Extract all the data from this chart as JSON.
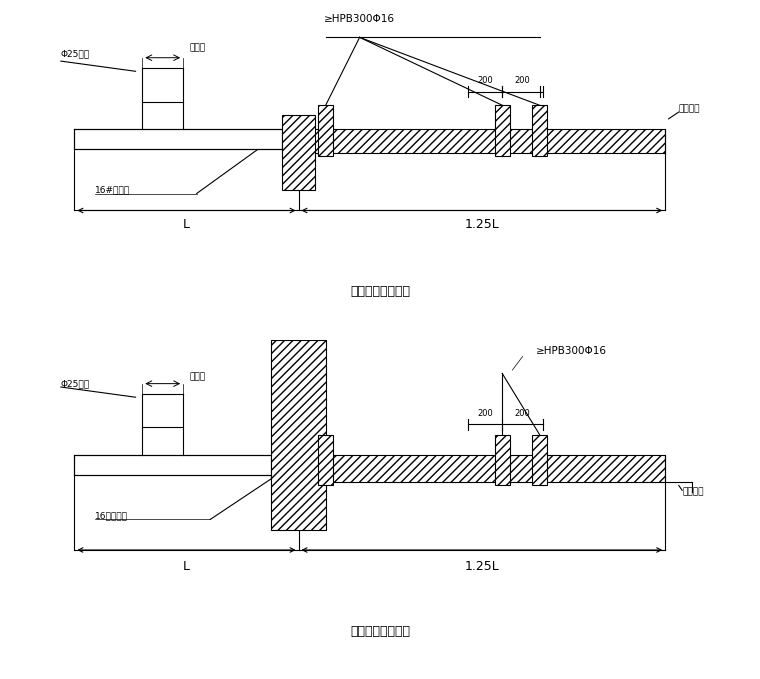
{
  "fig_width": 7.6,
  "fig_height": 6.79,
  "bg_color": "#ffffff",
  "lc": "#000000",
  "title1": "悬挑钢梁楼面构造",
  "title2": "悬挑钢梁穿墙构造",
  "label_hpb1": "≥HPB300Φ16",
  "label_hpb2": "≥HPB300Φ16",
  "label_phi25_1": "Φ25钉筋",
  "label_phi25_2": "Φ25钉筋",
  "label_tongkuan_1": "同架宽",
  "label_tongkuan_2": "同架宽",
  "label_izeel_1": "16#工字钉",
  "label_izeel_2": "16号工字钉",
  "label_muju_1": "木楔塞紧",
  "label_muju_2": "木楔塞紧",
  "label_200a": "200",
  "label_200b": "200",
  "label_L": "L",
  "label_125L": "1.25L"
}
